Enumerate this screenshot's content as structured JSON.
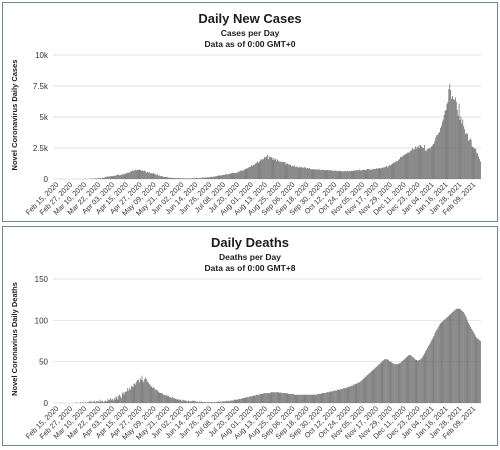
{
  "chart_data": [
    {
      "type": "bar",
      "title": "Daily New Cases",
      "subtitle": "Cases per Day",
      "subtitle2": "Data as of 0:00 GMT+0",
      "ylabel": "Novel Coronavirus Daily Cases",
      "xlabel": "",
      "ylim": [
        0,
        10000
      ],
      "yticks": [
        0,
        2500,
        5000,
        7500,
        10000
      ],
      "ytick_labels": [
        "0",
        "2.5k",
        "5k",
        "7.5k",
        "10k"
      ],
      "grid": true,
      "x_tick_labels": [
        "Feb 15, 2020",
        "Feb 27, 2020",
        "Mar 10, 2020",
        "Mar 22, 2020",
        "Apr 03, 2020",
        "Apr 15, 2020",
        "Apr 27, 2020",
        "May 09, 2020",
        "May 21, 2020",
        "Jun 02, 2020",
        "Jun 14, 2020",
        "Jun 26, 2020",
        "Jul 08, 2020",
        "Jul 20, 2020",
        "Aug 01, 2020",
        "Aug 13, 2020",
        "Aug 25, 2020",
        "Sep 06, 2020",
        "Sep 18, 2020",
        "Sep 30, 2020",
        "Oct 12, 2020",
        "Oct 24, 2020",
        "Nov 05, 2020",
        "Nov 17, 2020",
        "Nov 29, 2020",
        "Dec 11, 2020",
        "Dec 23, 2020",
        "Jan 04, 2021",
        "Jan 16, 2021",
        "Jan 28, 2021",
        "Feb 09, 2021"
      ],
      "values": [
        0,
        0,
        0,
        0,
        0,
        0,
        0,
        0,
        0,
        0,
        0,
        0,
        0,
        0,
        0,
        0,
        0,
        0,
        0,
        0,
        0,
        0,
        0,
        0,
        0,
        0,
        0,
        0,
        0,
        0,
        0,
        0,
        0,
        10,
        10,
        10,
        10,
        10,
        10,
        10,
        40,
        40,
        40,
        40,
        40,
        50,
        50,
        50,
        60,
        60,
        60,
        70,
        60,
        110,
        100,
        120,
        180,
        180,
        200,
        200,
        200,
        210,
        230,
        220,
        230,
        250,
        260,
        290,
        290,
        360,
        350,
        290,
        300,
        380,
        340,
        410,
        360,
        450,
        410,
        480,
        530,
        510,
        530,
        600,
        630,
        700,
        650,
        680,
        760,
        700,
        720,
        730,
        750,
        760,
        710,
        650,
        700,
        630,
        680,
        620,
        510,
        570,
        510,
        560,
        450,
        480,
        410,
        460,
        490,
        370,
        400,
        310,
        380,
        270,
        290,
        220,
        250,
        240,
        180,
        160,
        160,
        160,
        150,
        140,
        100,
        110,
        100,
        100,
        100,
        80,
        90,
        80,
        70,
        70,
        70,
        70,
        60,
        70,
        60,
        60,
        60,
        50,
        50,
        60,
        50,
        50,
        60,
        50,
        50,
        70,
        60,
        60,
        70,
        70,
        90,
        90,
        70,
        80,
        90,
        90,
        110,
        110,
        110,
        120,
        120,
        130,
        150,
        140,
        150,
        160,
        180,
        170,
        180,
        200,
        210,
        230,
        230,
        270,
        290,
        290,
        270,
        300,
        350,
        320,
        330,
        390,
        380,
        360,
        390,
        410,
        420,
        460,
        480,
        480,
        490,
        480,
        480,
        500,
        540,
        570,
        620,
        680,
        670,
        680,
        680,
        740,
        790,
        820,
        860,
        860,
        930,
        960,
        990,
        1110,
        1060,
        1120,
        1150,
        1240,
        1280,
        1420,
        1310,
        1350,
        1460,
        1550,
        1630,
        1550,
        1620,
        1780,
        1720,
        1820,
        1950,
        1600,
        1840,
        1750,
        1780,
        1700,
        1530,
        1710,
        1570,
        1620,
        1440,
        1570,
        1460,
        1400,
        1410,
        1360,
        1380,
        1390,
        1340,
        1370,
        1160,
        1250,
        1250,
        1160,
        1150,
        1150,
        1010,
        1080,
        1020,
        1090,
        950,
        990,
        1020,
        900,
        950,
        1010,
        920,
        960,
        920,
        910,
        950,
        920,
        850,
        890,
        840,
        880,
        830,
        780,
        760,
        810,
        760,
        780,
        790,
        740,
        770,
        790,
        760,
        730,
        730,
        750,
        760,
        710,
        720,
        700,
        710,
        730,
        690,
        720,
        700,
        690,
        680,
        670,
        640,
        700,
        660,
        630,
        630,
        670,
        640,
        660,
        620,
        610,
        620,
        630,
        640,
        620,
        680,
        600,
        660,
        610,
        660,
        640,
        670,
        650,
        700,
        690,
        700,
        740,
        690,
        760,
        710,
        680,
        730,
        770,
        720,
        750,
        700,
        790,
        810,
        800,
        770,
        760,
        750,
        810,
        780,
        810,
        800,
        870,
        830,
        860,
        870,
        880,
        850,
        900,
        920,
        930,
        950,
        980,
        1060,
        940,
        1010,
        1130,
        1090,
        1150,
        1200,
        1270,
        1320,
        1340,
        1380,
        1460,
        1440,
        1540,
        1610,
        1780,
        1760,
        1830,
        1880,
        1930,
        2000,
        2020,
        2070,
        2150,
        2140,
        2150,
        2290,
        2320,
        2490,
        2380,
        2410,
        2630,
        2460,
        2570,
        2680,
        2490,
        2750,
        2700,
        2580,
        2520,
        2500,
        2760,
        2290,
        2300,
        2420,
        2440,
        2490,
        2460,
        2600,
        2650,
        2800,
        2860,
        3100,
        3360,
        3520,
        3550,
        3700,
        3790,
        4110,
        4310,
        4630,
        4810,
        5170,
        5500,
        5560,
        6050,
        6220,
        7260,
        7640,
        7180,
        6470,
        6690,
        6430,
        6390,
        6580,
        6220,
        5590,
        5090,
        6060,
        4770,
        5060,
        4470,
        4790,
        4280,
        4020,
        3620,
        3700,
        3650,
        3090,
        3170,
        3280,
        3140,
        2620,
        2580,
        2460,
        2460,
        2420,
        2120,
        2040,
        1810,
        1620,
        1410
      ]
    },
    {
      "type": "bar",
      "title": "Daily Deaths",
      "subtitle": "Deaths per Day",
      "subtitle2": "Data as of 0:00 GMT+8",
      "ylabel": "Novel Coronavirus Daily Deaths",
      "xlabel": "",
      "ylim": [
        0,
        150
      ],
      "yticks": [
        0,
        50,
        100,
        150
      ],
      "ytick_labels": [
        "0",
        "50",
        "100",
        "150"
      ],
      "grid": true,
      "x_tick_labels": [
        "Feb 15, 2020",
        "Feb 27, 2020",
        "Mar 10, 2020",
        "Mar 22, 2020",
        "Apr 03, 2020",
        "Apr 15, 2020",
        "Apr 27, 2020",
        "May 09, 2020",
        "May 21, 2020",
        "Jun 02, 2020",
        "Jun 14, 2020",
        "Jun 26, 2020",
        "Jul 08, 2020",
        "Jul 20, 2020",
        "Aug 01, 2020",
        "Aug 13, 2020",
        "Aug 25, 2020",
        "Sep 06, 2020",
        "Sep 18, 2020",
        "Sep 30, 2020",
        "Oct 12, 2020",
        "Oct 24, 2020",
        "Nov 05, 2020",
        "Nov 17, 2020",
        "Nov 29, 2020",
        "Dec 11, 2020",
        "Dec 23, 2020",
        "Jan 04, 2021",
        "Jan 16, 2021",
        "Jan 28, 2021",
        "Feb 09, 2021"
      ],
      "values": [
        0,
        0,
        0,
        0,
        0,
        0,
        0,
        0,
        0,
        0,
        0,
        0,
        0,
        0,
        0,
        0,
        0,
        0,
        0,
        0,
        0,
        0,
        0,
        0,
        0,
        0,
        1,
        0,
        0,
        0,
        1,
        0,
        1,
        0,
        1,
        0,
        1,
        0,
        1,
        1,
        2,
        1,
        3,
        1,
        1,
        2,
        3,
        1,
        2,
        2,
        2,
        1,
        4,
        2,
        2,
        3,
        1,
        2,
        3,
        2,
        2,
        5,
        3,
        4,
        6,
        4,
        5,
        3,
        6,
        4,
        8,
        7,
        4,
        9,
        10,
        8,
        6,
        12,
        13,
        10,
        13,
        14,
        14,
        18,
        15,
        18,
        16,
        21,
        20,
        19,
        23,
        24,
        22,
        26,
        28,
        28,
        25,
        30,
        28,
        33,
        27,
        25,
        29,
        31,
        29,
        26,
        25,
        23,
        22,
        20,
        20,
        18,
        19,
        18,
        16,
        16,
        16,
        14,
        13,
        12,
        12,
        12,
        11,
        10,
        10,
        9,
        10,
        8,
        9,
        8,
        7,
        7,
        6,
        7,
        6,
        6,
        5,
        5,
        4,
        5,
        4,
        4,
        4,
        3,
        3,
        4,
        3,
        3,
        3,
        2,
        2,
        3,
        2,
        2,
        2,
        3,
        2,
        3,
        2,
        2,
        1,
        2,
        1,
        2,
        1,
        2,
        1,
        1,
        1,
        1,
        1,
        1,
        1,
        1,
        1,
        1,
        1,
        1,
        1,
        1,
        1,
        1,
        1,
        2,
        1,
        2,
        1,
        2,
        1,
        2,
        2,
        2,
        2,
        3,
        2,
        2,
        3,
        2,
        3,
        3,
        3,
        3,
        4,
        4,
        4,
        4,
        4,
        5,
        5,
        5,
        5,
        6,
        6,
        6,
        6,
        7,
        7,
        7,
        7,
        8,
        8,
        8,
        8,
        9,
        9,
        9,
        9,
        10,
        10,
        10,
        10,
        11,
        11,
        11,
        11,
        12,
        12,
        12,
        12,
        12,
        12,
        12,
        12,
        13,
        13,
        13,
        13,
        13,
        13,
        13,
        13,
        13,
        13,
        12,
        13,
        12,
        12,
        12,
        12,
        12,
        12,
        12,
        11,
        11,
        11,
        11,
        11,
        11,
        11,
        10,
        10,
        10,
        10,
        10,
        10,
        10,
        10,
        10,
        10,
        10,
        10,
        10,
        10,
        10,
        10,
        10,
        10,
        10,
        10,
        10,
        10,
        10,
        10,
        10,
        10,
        11,
        11,
        11,
        11,
        11,
        12,
        12,
        12,
        12,
        12,
        13,
        13,
        13,
        13,
        14,
        14,
        14,
        14,
        15,
        15,
        15,
        15,
        16,
        16,
        16,
        16,
        17,
        17,
        17,
        18,
        18,
        18,
        18,
        19,
        19,
        20,
        20,
        20,
        21,
        21,
        22,
        22,
        23,
        23,
        24,
        24,
        25,
        25,
        26,
        27,
        28,
        29,
        30,
        31,
        32,
        33,
        34,
        35,
        36,
        37,
        38,
        39,
        40,
        41,
        42,
        43,
        44,
        45,
        46,
        47,
        48,
        49,
        50,
        51,
        52,
        53,
        53,
        53,
        53,
        52,
        51,
        50,
        50,
        49,
        48,
        48,
        47,
        47,
        47,
        47,
        47,
        48,
        48,
        49,
        50,
        51,
        52,
        53,
        54,
        55,
        56,
        57,
        58,
        58,
        58,
        57,
        56,
        55,
        54,
        53,
        52,
        52,
        51,
        52,
        52,
        53,
        54,
        55,
        57,
        59,
        61,
        63,
        65,
        67,
        69,
        71,
        73,
        75,
        77,
        79,
        81,
        84,
        86,
        88,
        90,
        92,
        94,
        96,
        97,
        98,
        99,
        100,
        101,
        102,
        103,
        104,
        105,
        106,
        107,
        108,
        109,
        110,
        111,
        112,
        113,
        114,
        114,
        114,
        114,
        114,
        113,
        112,
        111,
        110,
        108,
        106,
        104,
        101,
        98,
        96,
        94,
        92,
        90,
        88,
        86,
        84,
        82,
        80,
        78,
        78,
        77,
        76,
        75
      ]
    }
  ]
}
